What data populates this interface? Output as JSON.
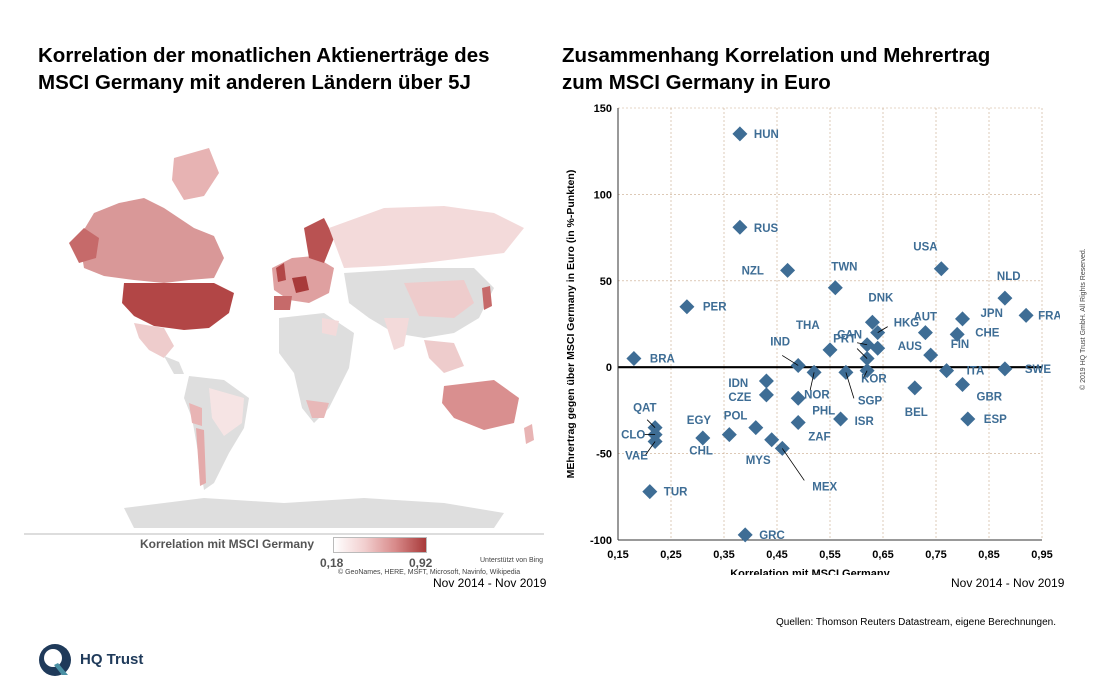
{
  "left_title": {
    "line1": "Korrelation der monatlichen Aktienerträge des",
    "line2": "MSCI Germany mit anderen Ländern über 5J"
  },
  "right_title": {
    "line1": "Zusammenhang Korrelation und Mehrertrag",
    "line2": "zum MSCI Germany in Euro"
  },
  "map": {
    "legend_title": "Korrelation mit MSCI Germany",
    "legend_min": "0,18",
    "legend_max": "0,92",
    "bing_credit": "Unterstützt von Bing",
    "attribution": "© GeoNames, HERE, MSFT, Microsoft, Navinfo, Wikipedia",
    "period": "Nov 2014 - Nov 2019",
    "colors": {
      "no_data": "#dedede",
      "low": "#f4dada",
      "mid": "#e0a3a3",
      "high": "#b24646",
      "highest": "#a83a3a"
    }
  },
  "chart_data": {
    "type": "scatter",
    "title": "Zusammenhang Korrelation und Mehrertrag zum MSCI Germany in Euro",
    "xlabel": "Korrelation mit MSCI Germany",
    "ylabel": "MEhrertrag gegen über MSCI Germany in Euro (in %-Punkten)",
    "xlim": [
      0.15,
      0.95
    ],
    "ylim": [
      -100,
      150
    ],
    "x_ticks": [
      "0,15",
      "0,25",
      "0,35",
      "0,45",
      "0,55",
      "0,65",
      "0,75",
      "0,85",
      "0,95"
    ],
    "y_ticks": [
      "-100",
      "-50",
      "0",
      "50",
      "100",
      "150"
    ],
    "grid": true,
    "marker_color": "#3e6d95",
    "label_color": "#3e6d95",
    "points": [
      {
        "label": "HUN",
        "x": 0.38,
        "y": 135
      },
      {
        "label": "RUS",
        "x": 0.38,
        "y": 81
      },
      {
        "label": "NZL",
        "x": 0.47,
        "y": 56
      },
      {
        "label": "TWN",
        "x": 0.56,
        "y": 46
      },
      {
        "label": "USA",
        "x": 0.76,
        "y": 57
      },
      {
        "label": "NLD",
        "x": 0.88,
        "y": 40
      },
      {
        "label": "FRA",
        "x": 0.92,
        "y": 30
      },
      {
        "label": "JPN",
        "x": 0.8,
        "y": 28
      },
      {
        "label": "AUT",
        "x": 0.73,
        "y": 20
      },
      {
        "label": "CHE",
        "x": 0.79,
        "y": 19
      },
      {
        "label": "DNK",
        "x": 0.63,
        "y": 26
      },
      {
        "label": "HKG",
        "x": 0.64,
        "y": 20
      },
      {
        "label": "PRT",
        "x": 0.62,
        "y": 13
      },
      {
        "label": "AUS",
        "x": 0.64,
        "y": 11
      },
      {
        "label": "FIN",
        "x": 0.74,
        "y": 7
      },
      {
        "label": "PER",
        "x": 0.28,
        "y": 35
      },
      {
        "label": "BRA",
        "x": 0.18,
        "y": 5
      },
      {
        "label": "THA",
        "x": 0.55,
        "y": 10
      },
      {
        "label": "CAN",
        "x": 0.62,
        "y": 5
      },
      {
        "label": "IND",
        "x": 0.49,
        "y": 1
      },
      {
        "label": "ITA",
        "x": 0.77,
        "y": -2
      },
      {
        "label": "SWE",
        "x": 0.88,
        "y": -1
      },
      {
        "label": "KOR",
        "x": 0.62,
        "y": -2
      },
      {
        "label": "NOR",
        "x": 0.52,
        "y": -3
      },
      {
        "label": "SGP",
        "x": 0.58,
        "y": -3
      },
      {
        "label": "IDN",
        "x": 0.43,
        "y": -8
      },
      {
        "label": "GBR",
        "x": 0.8,
        "y": -10
      },
      {
        "label": "BEL",
        "x": 0.71,
        "y": -12
      },
      {
        "label": "CZE",
        "x": 0.43,
        "y": -16
      },
      {
        "label": "PHL",
        "x": 0.49,
        "y": -18
      },
      {
        "label": "ISR",
        "x": 0.57,
        "y": -30
      },
      {
        "label": "ESP",
        "x": 0.81,
        "y": -30
      },
      {
        "label": "ZAF",
        "x": 0.49,
        "y": -32
      },
      {
        "label": "QAT",
        "x": 0.22,
        "y": -35
      },
      {
        "label": "POL",
        "x": 0.41,
        "y": -35
      },
      {
        "label": "CLO",
        "x": 0.22,
        "y": -39
      },
      {
        "label": "CHL",
        "x": 0.36,
        "y": -39
      },
      {
        "label": "EGY",
        "x": 0.31,
        "y": -41
      },
      {
        "label": "VAE",
        "x": 0.22,
        "y": -43
      },
      {
        "label": "MYS",
        "x": 0.44,
        "y": -42
      },
      {
        "label": "MEX",
        "x": 0.46,
        "y": -47
      },
      {
        "label": "TUR",
        "x": 0.21,
        "y": -72
      },
      {
        "label": "GRC",
        "x": 0.39,
        "y": -97
      }
    ]
  },
  "right_period": "Nov 2014 - Nov 2019",
  "sources": "Quellen: Thomson Reuters Datastream, eigene Berechnungen.",
  "copyright": "© 2019 HQ Trust GmbH. All Rights Reserved.",
  "logo_text": "HQ Trust"
}
